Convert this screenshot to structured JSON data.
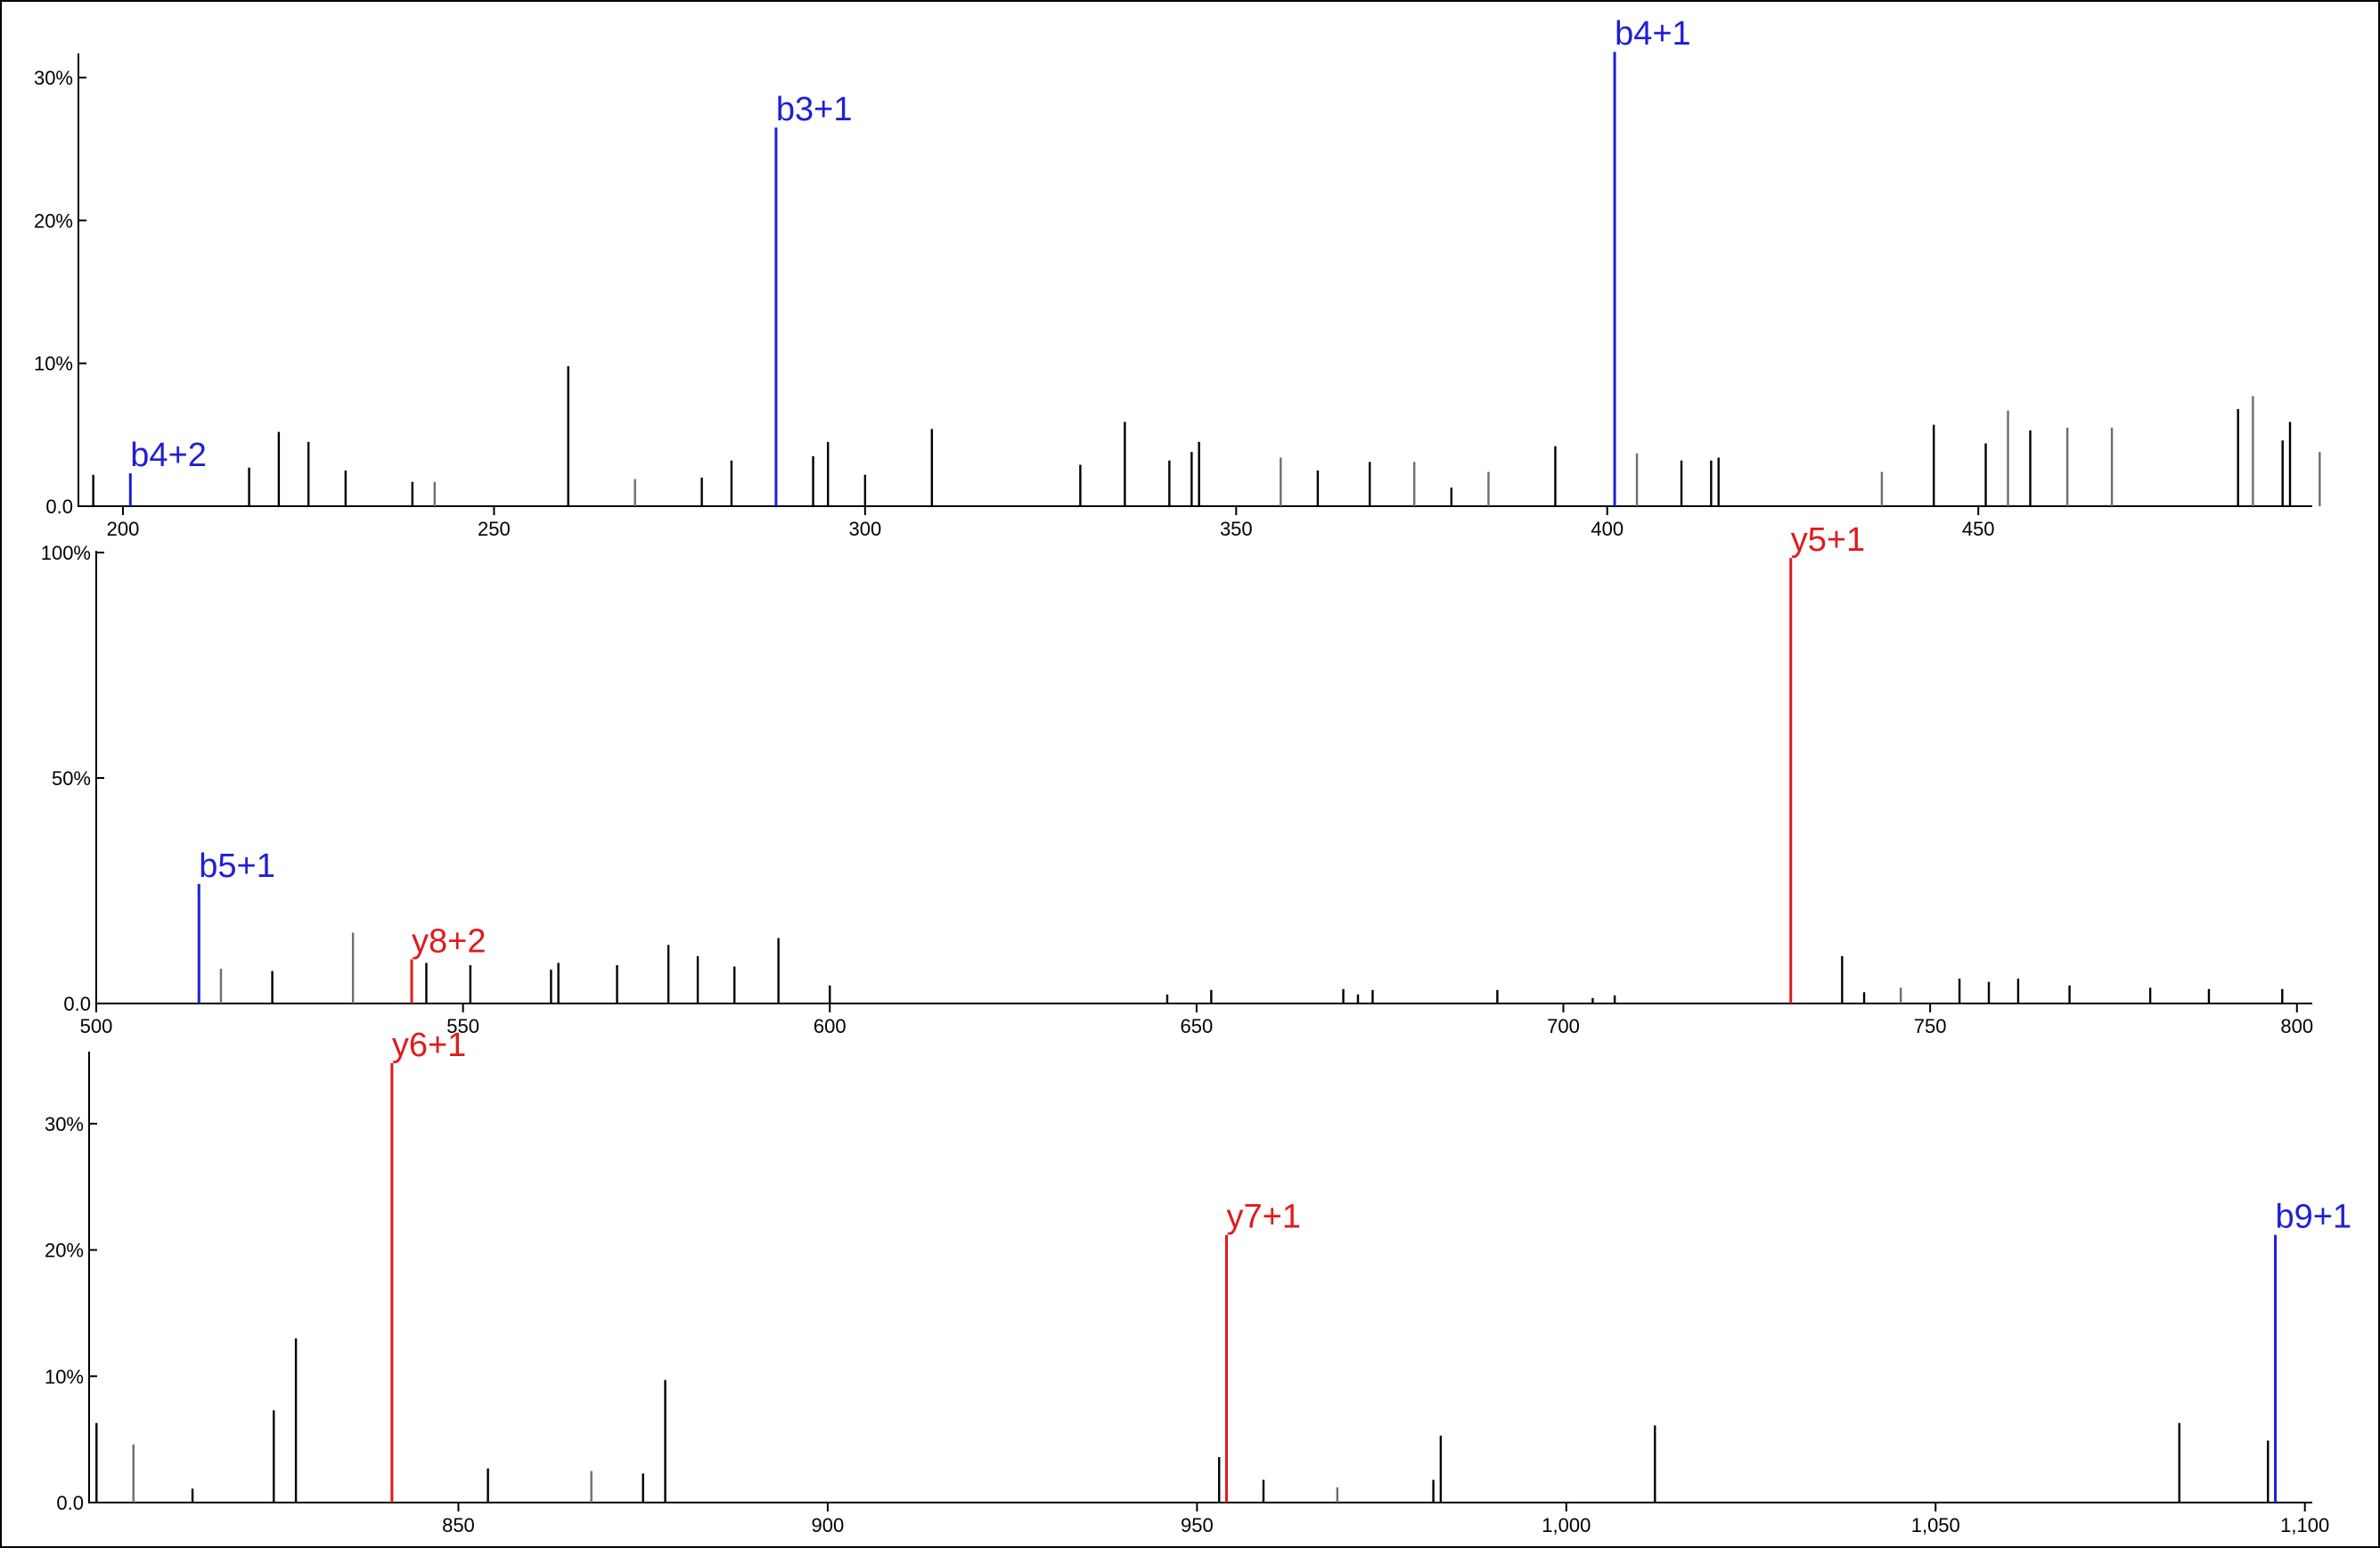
{
  "colors": {
    "b_ion": "#1f1fd6",
    "y_ion": "#e01b1b",
    "peak": "#000000",
    "peak_gray": "#6e6e6e"
  },
  "chart_data": [
    {
      "type": "bar",
      "xlim": [
        194,
        495
      ],
      "ylim": [
        0,
        32
      ],
      "xticks": [
        {
          "v": 200,
          "label": "200"
        },
        {
          "v": 250,
          "label": "250"
        },
        {
          "v": 300,
          "label": "300"
        },
        {
          "v": 350,
          "label": "350"
        },
        {
          "v": 400,
          "label": "400"
        },
        {
          "v": 450,
          "label": "450"
        }
      ],
      "yticks": [
        {
          "v": 0,
          "label": "0.0"
        },
        {
          "v": 10,
          "label": "10%"
        },
        {
          "v": 20,
          "label": "20%"
        },
        {
          "v": 30,
          "label": "30%"
        }
      ],
      "peaks": [
        {
          "mz": 196,
          "i": 2.2
        },
        {
          "mz": 201,
          "i": 2.3,
          "ion": "b",
          "label": "b4+2"
        },
        {
          "mz": 217,
          "i": 2.7
        },
        {
          "mz": 221,
          "i": 5.2
        },
        {
          "mz": 225,
          "i": 4.5
        },
        {
          "mz": 230,
          "i": 2.5
        },
        {
          "mz": 239,
          "i": 1.7
        },
        {
          "mz": 242,
          "i": 1.7,
          "gray": true
        },
        {
          "mz": 260,
          "i": 9.8
        },
        {
          "mz": 269,
          "i": 1.9,
          "gray": true
        },
        {
          "mz": 278,
          "i": 2.0
        },
        {
          "mz": 282,
          "i": 3.2
        },
        {
          "mz": 288,
          "i": 26.5,
          "ion": "b",
          "label": "b3+1"
        },
        {
          "mz": 293,
          "i": 3.5
        },
        {
          "mz": 295,
          "i": 4.5
        },
        {
          "mz": 300,
          "i": 2.2
        },
        {
          "mz": 309,
          "i": 5.4
        },
        {
          "mz": 329,
          "i": 2.9
        },
        {
          "mz": 335,
          "i": 5.9
        },
        {
          "mz": 341,
          "i": 3.2
        },
        {
          "mz": 344,
          "i": 3.8
        },
        {
          "mz": 345,
          "i": 4.5
        },
        {
          "mz": 356,
          "i": 3.4,
          "gray": true
        },
        {
          "mz": 361,
          "i": 2.5
        },
        {
          "mz": 368,
          "i": 3.1
        },
        {
          "mz": 374,
          "i": 3.1,
          "gray": true
        },
        {
          "mz": 379,
          "i": 1.3
        },
        {
          "mz": 384,
          "i": 2.4,
          "gray": true
        },
        {
          "mz": 393,
          "i": 4.2
        },
        {
          "mz": 401,
          "i": 31.8,
          "ion": "b",
          "label": "b4+1"
        },
        {
          "mz": 404,
          "i": 3.7,
          "gray": true
        },
        {
          "mz": 410,
          "i": 3.2
        },
        {
          "mz": 414,
          "i": 3.2
        },
        {
          "mz": 415,
          "i": 3.4
        },
        {
          "mz": 437,
          "i": 2.4,
          "gray": true
        },
        {
          "mz": 444,
          "i": 5.7
        },
        {
          "mz": 451,
          "i": 4.4
        },
        {
          "mz": 454,
          "i": 6.7,
          "gray": true
        },
        {
          "mz": 457,
          "i": 5.3
        },
        {
          "mz": 462,
          "i": 5.5,
          "gray": true
        },
        {
          "mz": 468,
          "i": 5.5,
          "gray": true
        },
        {
          "mz": 485,
          "i": 6.8
        },
        {
          "mz": 487,
          "i": 7.7,
          "gray": true
        },
        {
          "mz": 491,
          "i": 4.6
        },
        {
          "mz": 492,
          "i": 5.9
        },
        {
          "mz": 496,
          "i": 3.8,
          "gray": true
        }
      ]
    },
    {
      "type": "bar",
      "xlim": [
        500,
        801
      ],
      "ylim": [
        0,
        100
      ],
      "xticks": [
        {
          "v": 500,
          "label": "500"
        },
        {
          "v": 550,
          "label": "550"
        },
        {
          "v": 600,
          "label": "600"
        },
        {
          "v": 650,
          "label": "650"
        },
        {
          "v": 700,
          "label": "700"
        },
        {
          "v": 750,
          "label": "750"
        },
        {
          "v": 800,
          "label": "800"
        }
      ],
      "yticks": [
        {
          "v": 0,
          "label": "0.0"
        },
        {
          "v": 50,
          "label": "50%"
        },
        {
          "v": 100,
          "label": "100%"
        }
      ],
      "peaks": [
        {
          "mz": 514,
          "i": 26.5,
          "ion": "b",
          "label": "b5+1"
        },
        {
          "mz": 517,
          "i": 7.7,
          "gray": true
        },
        {
          "mz": 524,
          "i": 7.2
        },
        {
          "mz": 535,
          "i": 15.7,
          "gray": true
        },
        {
          "mz": 543,
          "i": 9.8,
          "ion": "y",
          "label": "y8+2"
        },
        {
          "mz": 545,
          "i": 9.0
        },
        {
          "mz": 551,
          "i": 8.5
        },
        {
          "mz": 562,
          "i": 7.5
        },
        {
          "mz": 563,
          "i": 9.0
        },
        {
          "mz": 571,
          "i": 8.5
        },
        {
          "mz": 578,
          "i": 13.0
        },
        {
          "mz": 582,
          "i": 10.5
        },
        {
          "mz": 587,
          "i": 8.2
        },
        {
          "mz": 593,
          "i": 14.5
        },
        {
          "mz": 600,
          "i": 4.0
        },
        {
          "mz": 646,
          "i": 2.0
        },
        {
          "mz": 652,
          "i": 3.0
        },
        {
          "mz": 670,
          "i": 3.2
        },
        {
          "mz": 672,
          "i": 2.0
        },
        {
          "mz": 674,
          "i": 3.0
        },
        {
          "mz": 691,
          "i": 3.0
        },
        {
          "mz": 704,
          "i": 1.2
        },
        {
          "mz": 707,
          "i": 1.8
        },
        {
          "mz": 731,
          "i": 98.8,
          "ion": "y",
          "label": "y5+1"
        },
        {
          "mz": 738,
          "i": 10.5
        },
        {
          "mz": 741,
          "i": 2.5
        },
        {
          "mz": 746,
          "i": 3.5,
          "gray": true
        },
        {
          "mz": 754,
          "i": 5.5
        },
        {
          "mz": 758,
          "i": 4.8
        },
        {
          "mz": 762,
          "i": 5.5
        },
        {
          "mz": 769,
          "i": 4.0
        },
        {
          "mz": 780,
          "i": 3.5
        },
        {
          "mz": 788,
          "i": 3.2
        },
        {
          "mz": 798,
          "i": 3.2
        }
      ]
    },
    {
      "type": "bar",
      "xlim": [
        800,
        1101
      ],
      "ylim": [
        0,
        35
      ],
      "xticks": [
        {
          "v": 850,
          "label": "850"
        },
        {
          "v": 900,
          "label": "900"
        },
        {
          "v": 950,
          "label": "950"
        },
        {
          "v": 1000,
          "label": "1,000"
        },
        {
          "v": 1050,
          "label": "1,050"
        },
        {
          "v": 1100,
          "label": "1,100"
        }
      ],
      "yticks": [
        {
          "v": 0,
          "label": "0.0"
        },
        {
          "v": 10,
          "label": "10%"
        },
        {
          "v": 20,
          "label": "20%"
        },
        {
          "v": 30,
          "label": "30%"
        }
      ],
      "peaks": [
        {
          "mz": 801,
          "i": 6.3
        },
        {
          "mz": 806,
          "i": 4.6,
          "gray": true
        },
        {
          "mz": 814,
          "i": 1.1
        },
        {
          "mz": 825,
          "i": 7.3
        },
        {
          "mz": 828,
          "i": 13.0
        },
        {
          "mz": 841,
          "i": 34.8,
          "ion": "y",
          "label": "y6+1"
        },
        {
          "mz": 854,
          "i": 2.7
        },
        {
          "mz": 868,
          "i": 2.5,
          "gray": true
        },
        {
          "mz": 875,
          "i": 2.3
        },
        {
          "mz": 878,
          "i": 9.7
        },
        {
          "mz": 953,
          "i": 3.6
        },
        {
          "mz": 954,
          "i": 21.2,
          "ion": "y",
          "label": "y7+1"
        },
        {
          "mz": 959,
          "i": 1.8
        },
        {
          "mz": 969,
          "i": 1.2,
          "gray": true
        },
        {
          "mz": 982,
          "i": 1.8
        },
        {
          "mz": 983,
          "i": 5.3
        },
        {
          "mz": 1012,
          "i": 6.1
        },
        {
          "mz": 1083,
          "i": 6.3
        },
        {
          "mz": 1095,
          "i": 4.9
        },
        {
          "mz": 1096,
          "i": 21.2,
          "ion": "b",
          "label": "b9+1"
        }
      ]
    }
  ]
}
